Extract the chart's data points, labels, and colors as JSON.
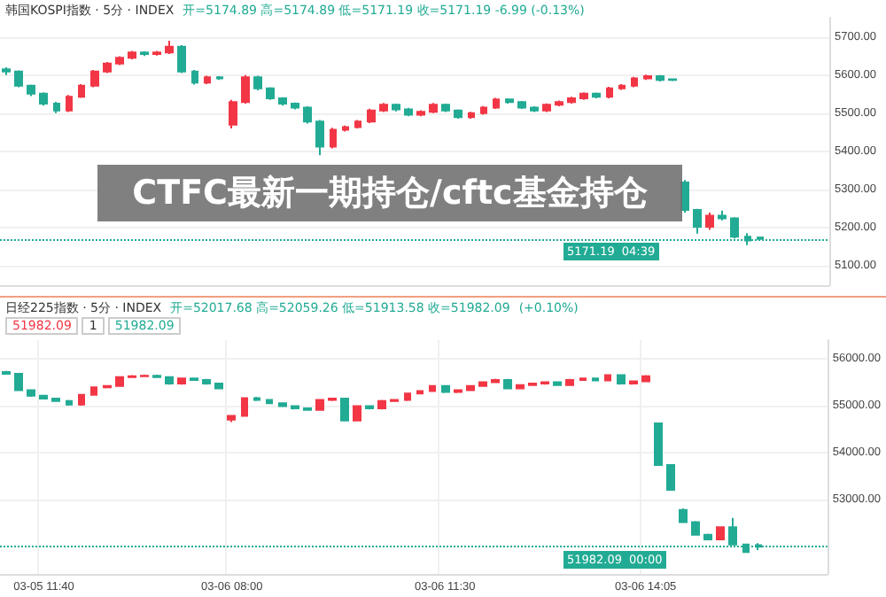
{
  "chart_data": [
    {
      "type": "candlestick",
      "title": "CTFC最新一期持仓/cftc基金持仓",
      "subtitle": "韩国KOSPI指数 · 5分 · INDEX",
      "categories": [
        null,
        null,
        null,
        null,
        null,
        null,
        null,
        null,
        null,
        null,
        null,
        null,
        null,
        null,
        null,
        null,
        null,
        null,
        null,
        null,
        null,
        null,
        null,
        null,
        null,
        null,
        null,
        null,
        null,
        null,
        null,
        null,
        null,
        null,
        null,
        null,
        null,
        null,
        null,
        null,
        null,
        null,
        null,
        null,
        null,
        null,
        null,
        null,
        null,
        null,
        null,
        null,
        null,
        null,
        null,
        null,
        null,
        null,
        null,
        null,
        null,
        null,
        null,
        null,
        null,
        null
      ],
      "ohlc": [
        [
          5615,
          5620,
          5600,
          5609
        ],
        [
          5609,
          5612,
          5568,
          5572
        ],
        [
          5572,
          5575,
          5545,
          5551
        ],
        [
          5551,
          5555,
          5520,
          5525
        ],
        [
          5525,
          5530,
          5500,
          5507
        ],
        [
          5507,
          5548,
          5503,
          5543
        ],
        [
          5543,
          5576,
          5540,
          5572
        ],
        [
          5572,
          5613,
          5568,
          5609
        ],
        [
          5609,
          5634,
          5605,
          5630
        ],
        [
          5630,
          5649,
          5626,
          5645
        ],
        [
          5645,
          5663,
          5641,
          5659
        ],
        [
          5659,
          5662,
          5650,
          5655
        ],
        [
          5655,
          5663,
          5651,
          5659
        ],
        [
          5659,
          5690,
          5655,
          5674
        ],
        [
          5674,
          5678,
          5605,
          5609
        ],
        [
          5609,
          5613,
          5575,
          5580
        ],
        [
          5580,
          5598,
          5576,
          5594
        ],
        [
          5594,
          5597,
          5587,
          5591
        ],
        [
          5470,
          5535,
          5460,
          5529
        ],
        [
          5529,
          5600,
          5525,
          5594
        ],
        [
          5594,
          5598,
          5560,
          5565
        ],
        [
          5565,
          5568,
          5535,
          5539
        ],
        [
          5539,
          5542,
          5520,
          5525
        ],
        [
          5525,
          5528,
          5510,
          5515
        ],
        [
          5515,
          5518,
          5473,
          5478
        ],
        [
          5478,
          5482,
          5390,
          5413
        ],
        [
          5413,
          5462,
          5408,
          5457
        ],
        [
          5457,
          5468,
          5452,
          5464
        ],
        [
          5464,
          5482,
          5460,
          5478
        ],
        [
          5478,
          5512,
          5474,
          5507
        ],
        [
          5507,
          5527,
          5503,
          5522
        ],
        [
          5522,
          5525,
          5505,
          5510
        ],
        [
          5510,
          5514,
          5492,
          5496
        ],
        [
          5496,
          5508,
          5492,
          5504
        ],
        [
          5504,
          5527,
          5500,
          5522
        ],
        [
          5522,
          5525,
          5503,
          5507
        ],
        [
          5507,
          5510,
          5486,
          5490
        ],
        [
          5490,
          5504,
          5486,
          5500
        ],
        [
          5500,
          5519,
          5496,
          5515
        ],
        [
          5515,
          5540,
          5511,
          5536
        ],
        [
          5536,
          5539,
          5525,
          5529
        ],
        [
          5529,
          5532,
          5511,
          5515
        ],
        [
          5515,
          5518,
          5503,
          5507
        ],
        [
          5507,
          5526,
          5503,
          5522
        ],
        [
          5522,
          5533,
          5518,
          5529
        ],
        [
          5529,
          5543,
          5525,
          5539
        ],
        [
          5539,
          5555,
          5535,
          5551
        ],
        [
          5551,
          5554,
          5539,
          5543
        ],
        [
          5543,
          5569,
          5539,
          5565
        ],
        [
          5565,
          5576,
          5561,
          5572
        ],
        [
          5572,
          5595,
          5568,
          5591
        ],
        [
          5591,
          5601,
          5587,
          5597
        ],
        [
          5597,
          5600,
          5583,
          5587
        ],
        [
          5589,
          5591,
          5584,
          5587
        ],
        [
          5319,
          5325,
          5240,
          5247
        ],
        [
          5247,
          5250,
          5185,
          5203
        ],
        [
          5203,
          5240,
          5195,
          5232
        ],
        [
          5232,
          5245,
          5220,
          5225
        ],
        [
          5225,
          5228,
          5172,
          5177
        ],
        [
          5177,
          5186,
          5155,
          5167
        ],
        [
          5174.89,
          5174.89,
          5171.19,
          5171.19
        ],
        null,
        null,
        null,
        null,
        null
      ],
      "colors": [
        "#22ab94",
        "#22ab94",
        "#22ab94",
        "#22ab94",
        "#22ab94",
        "#f23645",
        "#f23645",
        "#f23645",
        "#f23645",
        "#f23645",
        "#f23645",
        "#22ab94",
        "#f23645",
        "#f23645",
        "#22ab94",
        "#22ab94",
        "#f23645",
        "#22ab94",
        "#f23645",
        "#f23645",
        "#22ab94",
        "#22ab94",
        "#22ab94",
        "#22ab94",
        "#22ab94",
        "#22ab94",
        "#f23645",
        "#f23645",
        "#f23645",
        "#f23645",
        "#f23645",
        "#22ab94",
        "#22ab94",
        "#f23645",
        "#f23645",
        "#22ab94",
        "#22ab94",
        "#f23645",
        "#f23645",
        "#f23645",
        "#22ab94",
        "#22ab94",
        "#22ab94",
        "#f23645",
        "#f23645",
        "#f23645",
        "#f23645",
        "#22ab94",
        "#f23645",
        "#f23645",
        "#f23645",
        "#f23645",
        "#22ab94",
        "#22ab94",
        "#22ab94",
        "#22ab94",
        "#f23645",
        "#22ab94",
        "#22ab94",
        "#22ab94",
        "#22ab94",
        null,
        null,
        null,
        null,
        null
      ],
      "ylim": [
        5050,
        5750
      ],
      "yticks": [
        {
          "value": 5100,
          "label": "5100.00"
        },
        {
          "value": 5200,
          "label": "5200.00"
        },
        {
          "value": 5300,
          "label": "5300.00"
        },
        {
          "value": 5400,
          "label": "5400.00"
        },
        {
          "value": 5500,
          "label": "5500.00"
        },
        {
          "value": 5600,
          "label": "5600.00"
        },
        {
          "value": 5700,
          "label": "5700.00"
        }
      ],
      "grid": true,
      "tick_labels": "y",
      "ref_lines": [
        {
          "axis": "y",
          "value": 5171.19,
          "label": "5171.19",
          "color": "#22ab94",
          "line_style": "dotted"
        }
      ],
      "annotations": [
        "开=5174.89 高=5174.89 低=5171.19 收=5171.19 -6.99 (-0.13%)",
        "04:39"
      ]
    },
    {
      "type": "candlestick",
      "subtitle": "日经225指数 · 5分 · INDEX",
      "categories": [
        null,
        null,
        null,
        "03-05 11:40",
        null,
        null,
        null,
        null,
        null,
        null,
        null,
        null,
        null,
        null,
        null,
        null,
        null,
        null,
        "03-06 08:00",
        null,
        null,
        null,
        null,
        null,
        null,
        null,
        null,
        null,
        null,
        null,
        null,
        null,
        null,
        null,
        null,
        "03-06 11:30",
        null,
        null,
        null,
        null,
        null,
        null,
        null,
        null,
        null,
        null,
        null,
        null,
        null,
        null,
        null,
        "03-06 14:05",
        null,
        null,
        null,
        null,
        null,
        null,
        null,
        null,
        null,
        null,
        null,
        null,
        null,
        null
      ],
      "ohlc": [
        [
          55720,
          55740,
          55660,
          55680
        ],
        [
          55680,
          55690,
          55310,
          55330
        ],
        [
          55330,
          55350,
          55190,
          55210
        ],
        [
          55210,
          55230,
          55130,
          55150
        ],
        [
          55150,
          55170,
          55080,
          55100
        ],
        [
          55100,
          55120,
          55000,
          55020
        ],
        [
          55020,
          55250,
          55000,
          55230
        ],
        [
          55230,
          55410,
          55210,
          55390
        ],
        [
          55390,
          55440,
          55370,
          55420
        ],
        [
          55420,
          55630,
          55400,
          55610
        ],
        [
          55610,
          55650,
          55590,
          55630
        ],
        [
          55630,
          55660,
          55610,
          55640
        ],
        [
          55640,
          55660,
          55590,
          55610
        ],
        [
          55610,
          55630,
          55450,
          55470
        ],
        [
          55470,
          55600,
          55450,
          55580
        ],
        [
          55580,
          55600,
          55530,
          55550
        ],
        [
          55550,
          55570,
          55450,
          55470
        ],
        [
          55470,
          55490,
          55350,
          55370
        ],
        [
          54700,
          54800,
          54650,
          54780
        ],
        [
          54780,
          55180,
          54760,
          55160
        ],
        [
          55160,
          55190,
          55100,
          55120
        ],
        [
          55120,
          55140,
          55030,
          55050
        ],
        [
          55050,
          55070,
          54970,
          54990
        ],
        [
          54990,
          55010,
          54920,
          54940
        ],
        [
          54940,
          54960,
          54890,
          54910
        ],
        [
          54910,
          55140,
          54890,
          55120
        ],
        [
          55120,
          55170,
          55100,
          55150
        ],
        [
          55150,
          55170,
          54660,
          54680
        ],
        [
          54680,
          55000,
          54660,
          54990
        ],
        [
          54990,
          55010,
          54920,
          54940
        ],
        [
          54940,
          55120,
          54920,
          55100
        ],
        [
          55100,
          55140,
          55080,
          55120
        ],
        [
          55120,
          55280,
          55100,
          55260
        ],
        [
          55260,
          55330,
          55240,
          55310
        ],
        [
          55310,
          55440,
          55290,
          55420
        ],
        [
          55420,
          55440,
          55270,
          55290
        ],
        [
          55290,
          55350,
          55270,
          55330
        ],
        [
          55330,
          55440,
          55310,
          55420
        ],
        [
          55420,
          55520,
          55400,
          55500
        ],
        [
          55500,
          55570,
          55480,
          55550
        ],
        [
          55550,
          55570,
          55350,
          55370
        ],
        [
          55370,
          55460,
          55350,
          55440
        ],
        [
          55440,
          55490,
          55420,
          55470
        ],
        [
          55470,
          55520,
          55450,
          55500
        ],
        [
          55500,
          55520,
          55420,
          55440
        ],
        [
          55440,
          55570,
          55420,
          55550
        ],
        [
          55550,
          55600,
          55530,
          55580
        ],
        [
          55580,
          55600,
          55520,
          55540
        ],
        [
          55540,
          55670,
          55520,
          55650
        ],
        [
          55650,
          55670,
          55450,
          55470
        ],
        [
          55470,
          55540,
          55450,
          55520
        ],
        [
          55520,
          55650,
          55500,
          55630
        ],
        [
          54620,
          54640,
          53720,
          53730
        ],
        [
          53730,
          53750,
          53180,
          53200
        ],
        [
          52770,
          52800,
          52490,
          52510
        ],
        [
          52510,
          52530,
          52220,
          52240
        ],
        [
          52240,
          52260,
          52120,
          52140
        ],
        [
          52140,
          52420,
          52120,
          52400
        ],
        [
          52400,
          52600,
          52020,
          52030
        ],
        [
          52030,
          52050,
          51850,
          51870
        ],
        [
          52017.68,
          52059.26,
          51913.58,
          51982.09
        ],
        null,
        null,
        null,
        null,
        null
      ],
      "colors": [
        "#22ab94",
        "#22ab94",
        "#22ab94",
        "#22ab94",
        "#22ab94",
        "#22ab94",
        "#f23645",
        "#f23645",
        "#f23645",
        "#f23645",
        "#f23645",
        "#f23645",
        "#22ab94",
        "#22ab94",
        "#f23645",
        "#22ab94",
        "#22ab94",
        "#22ab94",
        "#f23645",
        "#f23645",
        "#22ab94",
        "#22ab94",
        "#22ab94",
        "#22ab94",
        "#22ab94",
        "#f23645",
        "#f23645",
        "#22ab94",
        "#f23645",
        "#22ab94",
        "#f23645",
        "#f23645",
        "#f23645",
        "#f23645",
        "#f23645",
        "#22ab94",
        "#f23645",
        "#f23645",
        "#f23645",
        "#f23645",
        "#22ab94",
        "#f23645",
        "#f23645",
        "#f23645",
        "#22ab94",
        "#f23645",
        "#f23645",
        "#22ab94",
        "#f23645",
        "#22ab94",
        "#f23645",
        "#f23645",
        "#22ab94",
        "#22ab94",
        "#22ab94",
        "#22ab94",
        "#22ab94",
        "#f23645",
        "#22ab94",
        "#22ab94",
        "#22ab94",
        null,
        null,
        null,
        null,
        null
      ],
      "ylim": [
        51400,
        56400
      ],
      "yticks": [
        {
          "value": 53000,
          "label": "53000.00"
        },
        {
          "value": 54000,
          "label": "54000.00"
        },
        {
          "value": 55000,
          "label": "55000.00"
        },
        {
          "value": 56000,
          "label": "56000.00"
        }
      ],
      "grid": true,
      "ref_lines": [
        {
          "axis": "y",
          "value": 51982.09,
          "label": "51982.09",
          "color": "#22ab94",
          "line_style": "dotted"
        }
      ],
      "annotations": [
        "开=52017.68 高=52059.26 低=51913.58 收=51982.09",
        "(+0.10%)",
        "51982.09",
        "1",
        "51982.09",
        "00:00"
      ]
    }
  ]
}
